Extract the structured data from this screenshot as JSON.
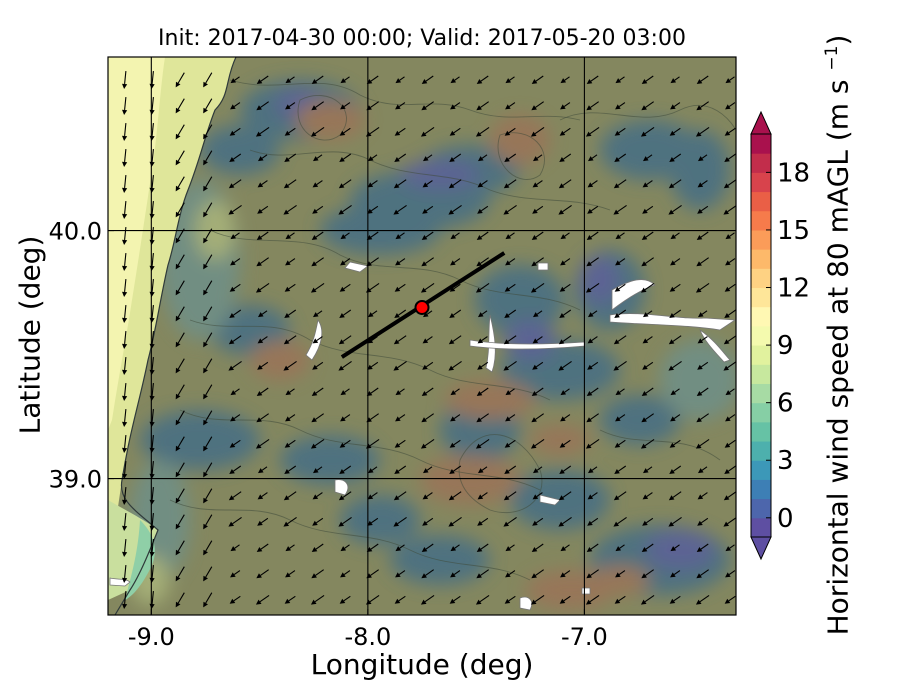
{
  "title": "Init: 2017-04-30 00:00; Valid: 2017-05-20 03:00",
  "chart_data": {
    "type": "heatmap",
    "subtype": "filled contour map with wind vectors",
    "title": "Init: 2017-04-30 00:00; Valid: 2017-05-20 03:00",
    "xlabel": "Longitude (deg)",
    "ylabel": "Latitude (deg)",
    "xlim": [
      -9.2,
      -6.3
    ],
    "ylim": [
      38.45,
      40.7
    ],
    "xticks": [
      -9.0,
      -8.0,
      -7.0
    ],
    "xtick_labels": [
      "-9.0",
      "-8.0",
      "-7.0"
    ],
    "yticks": [
      39.0,
      40.0
    ],
    "ytick_labels": [
      "39.0",
      "40.0"
    ],
    "grid": true,
    "grid_longitudes": [
      -9.0,
      -8.0,
      -7.0
    ],
    "grid_latitudes": [
      39.0,
      40.0
    ],
    "colorbar": {
      "label": "Horizontal wind speed at 80 mAGL",
      "units": "m s",
      "units_exponent": "−1",
      "min": -1,
      "max": 20,
      "ticks": [
        0,
        3,
        6,
        9,
        12,
        15,
        18
      ],
      "extend": "both",
      "colors": [
        "#5e4fa2",
        "#4d66ac",
        "#3d7fb5",
        "#3c98b8",
        "#4db0ad",
        "#66c2a5",
        "#86cfa5",
        "#a7dba4",
        "#c7e89e",
        "#e1f29e",
        "#f4faae",
        "#fff8b3",
        "#fee699",
        "#fed283",
        "#fdb96a",
        "#fb9c59",
        "#f67b4b",
        "#ea5f46",
        "#d8434c",
        "#c22d4b",
        "#a9114d"
      ]
    },
    "wind_field": {
      "dominant_direction": "from northeast (vectors pointing southwest)",
      "coast_direction": "from north (vectors pointing south)"
    },
    "marked_point": {
      "lon": -7.75,
      "lat": 39.69,
      "color": "#ff0000"
    },
    "cross_section_line": {
      "start": [
        -8.12,
        39.49
      ],
      "end": [
        -7.37,
        39.91
      ]
    }
  }
}
